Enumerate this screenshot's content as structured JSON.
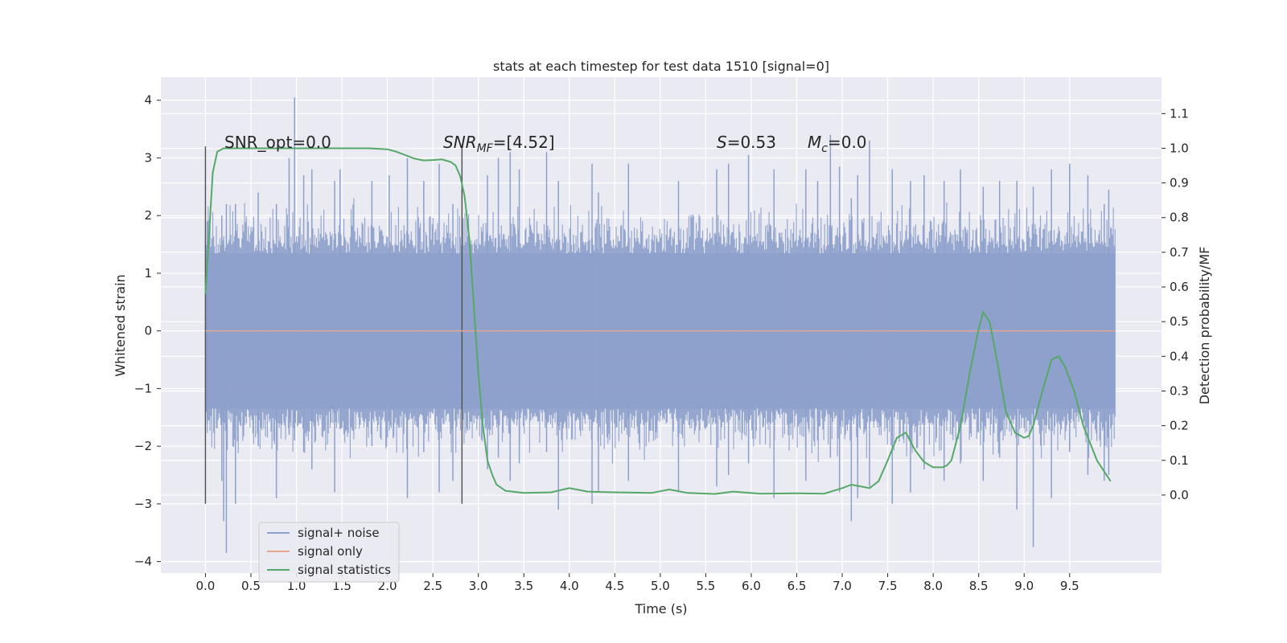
{
  "chart_data": {
    "type": "line",
    "title": "stats at each timestep for test data 1510 [signal=0]",
    "xlabel": "Time (s)",
    "ylabel": "Whitened strain",
    "y2label": "Detection probability/MF",
    "xlim": [
      -0.49,
      10.51
    ],
    "ylim": [
      -4.2,
      4.4
    ],
    "y2lim": [
      -0.225,
      1.205
    ],
    "x_ticks": [
      "0.0",
      "0.5",
      "1.0",
      "1.5",
      "2.0",
      "2.5",
      "3.0",
      "3.5",
      "4.0",
      "4.5",
      "5.0",
      "5.5",
      "6.0",
      "6.5",
      "7.0",
      "7.5",
      "8.0",
      "8.5",
      "9.0",
      "9.5"
    ],
    "y_ticks": [
      "4",
      "3",
      "2",
      "1",
      "0",
      "−1",
      "−2",
      "−3",
      "−4"
    ],
    "y2_ticks": [
      "1.1",
      "1.0",
      "0.9",
      "0.8",
      "0.7",
      "0.6",
      "0.5",
      "0.4",
      "0.3",
      "0.2",
      "0.1",
      "0.0"
    ],
    "grid": true,
    "legend_position": "lower-left",
    "annotations": {
      "snr_opt": "SNR_opt=0.0",
      "snr_mf_main": "SNR",
      "snr_mf_sub": "MF",
      "snr_mf_value": "=[4.52]",
      "s_main": "S",
      "s_value": "=0.53",
      "mc_main": "M",
      "mc_sub": "c",
      "mc_value": "=0.0"
    },
    "vertical_markers": [
      {
        "x": 0.0,
        "ymin": -3.0,
        "ymax": 3.2
      },
      {
        "x": 2.82,
        "ymin": -3.0,
        "ymax": 3.2
      }
    ],
    "series": [
      {
        "name": "signal+ noise",
        "color": "#8da0cb",
        "kind": "noise",
        "x_range": [
          0.0,
          10.0
        ],
        "spikes": [
          [
            0.02,
            1.9,
            -1.6
          ],
          [
            0.18,
            2.0,
            -2.6
          ],
          [
            0.2,
            1.5,
            -3.3
          ],
          [
            0.23,
            2.2,
            -3.85
          ],
          [
            0.33,
            2.2,
            -3.0
          ],
          [
            0.58,
            2.4,
            -2.0
          ],
          [
            0.78,
            2.2,
            -2.9
          ],
          [
            0.92,
            3.0,
            -1.8
          ],
          [
            0.98,
            4.05,
            -1.9
          ],
          [
            1.08,
            2.7,
            -2.1
          ],
          [
            1.17,
            2.8,
            -2.4
          ],
          [
            1.42,
            2.6,
            -2.8
          ],
          [
            1.48,
            2.8,
            -1.7
          ],
          [
            1.83,
            2.6,
            -2.0
          ],
          [
            2.02,
            2.7,
            -1.5
          ],
          [
            2.22,
            3.0,
            -2.9
          ],
          [
            2.4,
            2.6,
            -2.1
          ],
          [
            2.57,
            2.9,
            -2.8
          ],
          [
            2.72,
            2.2,
            -2.6
          ],
          [
            3.1,
            2.7,
            -2.4
          ],
          [
            3.22,
            3.0,
            -2.2
          ],
          [
            3.35,
            3.1,
            -2.6
          ],
          [
            3.45,
            2.8,
            -2.3
          ],
          [
            3.75,
            3.1,
            -2.1
          ],
          [
            3.88,
            2.6,
            -3.1
          ],
          [
            4.25,
            2.9,
            -3.0
          ],
          [
            4.32,
            2.4,
            -2.8
          ],
          [
            4.65,
            2.9,
            -2.6
          ],
          [
            5.2,
            2.6,
            -2.8
          ],
          [
            5.62,
            2.8,
            -2.7
          ],
          [
            5.75,
            2.9,
            -2.5
          ],
          [
            5.97,
            3.05,
            -2.3
          ],
          [
            6.25,
            2.8,
            -2.9
          ],
          [
            6.6,
            2.8,
            -2.6
          ],
          [
            6.73,
            2.6,
            -1.9
          ],
          [
            6.87,
            3.4,
            -2.2
          ],
          [
            6.97,
            2.85,
            -2.8
          ],
          [
            7.1,
            2.3,
            -3.3
          ],
          [
            7.17,
            2.7,
            -2.9
          ],
          [
            7.3,
            3.3,
            -2.7
          ],
          [
            7.55,
            2.8,
            -3.0
          ],
          [
            7.75,
            2.6,
            -2.8
          ],
          [
            7.9,
            2.7,
            -2.4
          ],
          [
            8.12,
            2.6,
            -2.6
          ],
          [
            8.3,
            2.8,
            -2.3
          ],
          [
            8.55,
            2.5,
            -2.6
          ],
          [
            8.73,
            2.6,
            -2.2
          ],
          [
            8.92,
            2.6,
            -3.1
          ],
          [
            9.1,
            2.5,
            -3.75
          ],
          [
            9.3,
            2.8,
            -2.9
          ],
          [
            9.5,
            2.9,
            -2.1
          ],
          [
            9.7,
            2.7,
            -2.5
          ],
          [
            9.88,
            2.2,
            -2.6
          ],
          [
            9.93,
            2.45,
            -2.5
          ]
        ]
      },
      {
        "name": "signal only",
        "color": "#e6a58f",
        "x": [
          0.0,
          10.0
        ],
        "y": [
          0.0,
          0.0
        ]
      },
      {
        "name": "signal statistics",
        "color": "#55a868",
        "axis": "right",
        "x": [
          0.0,
          0.04,
          0.08,
          0.13,
          0.2,
          0.35,
          0.6,
          1.0,
          1.5,
          1.8,
          2.0,
          2.1,
          2.2,
          2.3,
          2.4,
          2.5,
          2.6,
          2.7,
          2.75,
          2.8,
          2.85,
          2.9,
          2.95,
          3.0,
          3.05,
          3.1,
          3.15,
          3.2,
          3.3,
          3.5,
          3.8,
          4.0,
          4.2,
          4.5,
          4.9,
          5.1,
          5.3,
          5.6,
          5.8,
          6.1,
          6.5,
          6.8,
          7.0,
          7.1,
          7.2,
          7.3,
          7.4,
          7.5,
          7.6,
          7.7,
          7.8,
          7.9,
          8.0,
          8.1,
          8.15,
          8.2,
          8.3,
          8.4,
          8.5,
          8.55,
          8.62,
          8.7,
          8.8,
          8.9,
          9.0,
          9.05,
          9.1,
          9.2,
          9.3,
          9.38,
          9.45,
          9.55,
          9.65,
          9.8,
          9.95
        ],
        "y": [
          0.58,
          0.75,
          0.93,
          0.99,
          1.0,
          1.0,
          1.0,
          1.0,
          1.0,
          1.0,
          0.997,
          0.99,
          0.98,
          0.97,
          0.965,
          0.966,
          0.968,
          0.96,
          0.95,
          0.92,
          0.86,
          0.74,
          0.55,
          0.35,
          0.2,
          0.1,
          0.06,
          0.03,
          0.012,
          0.006,
          0.008,
          0.02,
          0.01,
          0.008,
          0.006,
          0.016,
          0.006,
          0.003,
          0.01,
          0.004,
          0.005,
          0.004,
          0.02,
          0.03,
          0.025,
          0.02,
          0.04,
          0.1,
          0.165,
          0.18,
          0.13,
          0.095,
          0.08,
          0.08,
          0.085,
          0.1,
          0.2,
          0.35,
          0.48,
          0.527,
          0.5,
          0.39,
          0.24,
          0.18,
          0.165,
          0.17,
          0.2,
          0.3,
          0.39,
          0.4,
          0.37,
          0.3,
          0.2,
          0.1,
          0.04
        ]
      }
    ]
  }
}
